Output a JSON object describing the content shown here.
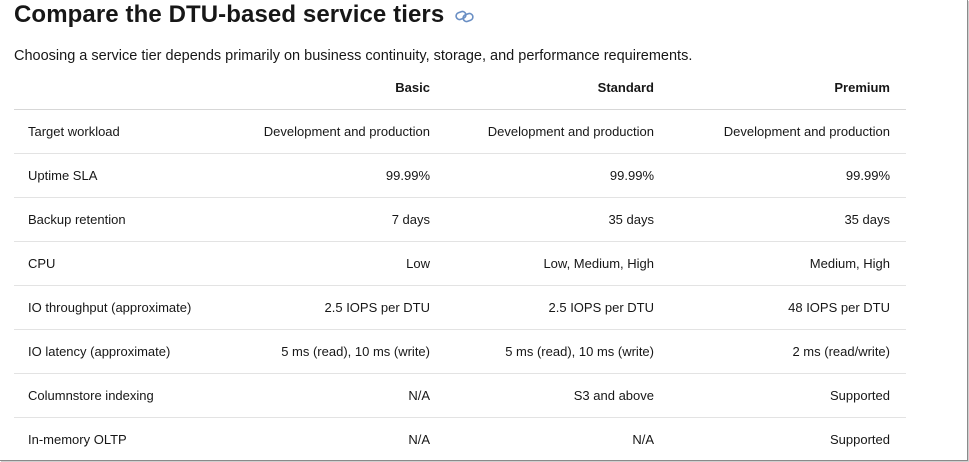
{
  "heading": {
    "title": "Compare the DTU-based service tiers",
    "link_icon": "link-icon"
  },
  "intro": "Choosing a service tier depends primarily on business continuity, storage, and performance requirements.",
  "table": {
    "columns": [
      "",
      "Basic",
      "Standard",
      "Premium"
    ],
    "rows": [
      {
        "feature": "Target workload",
        "basic": "Development and production",
        "standard": "Development and production",
        "premium": "Development and production"
      },
      {
        "feature": "Uptime SLA",
        "basic": "99.99%",
        "standard": "99.99%",
        "premium": "99.99%"
      },
      {
        "feature": "Backup retention",
        "basic": "7 days",
        "standard": "35 days",
        "premium": "35 days"
      },
      {
        "feature": "CPU",
        "basic": "Low",
        "standard": "Low, Medium, High",
        "premium": "Medium, High"
      },
      {
        "feature": "IO throughput (approximate)",
        "basic": "2.5 IOPS per DTU",
        "standard": "2.5 IOPS per DTU",
        "premium": "48 IOPS per DTU"
      },
      {
        "feature": "IO latency (approximate)",
        "basic": "5 ms (read), 10 ms (write)",
        "standard": "5 ms (read), 10 ms (write)",
        "premium": "2 ms (read/write)"
      },
      {
        "feature": "Columnstore indexing",
        "basic": "N/A",
        "standard": "S3 and above",
        "premium": "Supported"
      },
      {
        "feature": "In-memory OLTP",
        "basic": "N/A",
        "standard": "N/A",
        "premium": "Supported"
      }
    ]
  },
  "colors": {
    "text": "#171717",
    "link_icon": "#6a8fc4",
    "row_border": "#e3e3e3"
  }
}
